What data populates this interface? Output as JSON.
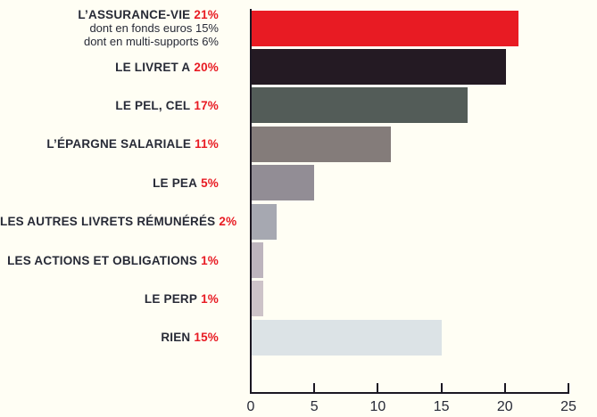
{
  "chart_data": {
    "type": "bar",
    "orientation": "horizontal",
    "title": "",
    "xlabel": "",
    "ylabel": "",
    "xlim": [
      0,
      25
    ],
    "grid": false,
    "legend": false,
    "background_color": "#FFFEF4",
    "axis_color": "#1B1722",
    "label_color": "#272A36",
    "accent_color": "#E81B23",
    "x_ticks": [
      {
        "label": "0",
        "value": 0
      },
      {
        "label": "5",
        "value": 5
      },
      {
        "label": "10",
        "value": 10
      },
      {
        "label": "15",
        "value": 15
      },
      {
        "label": "20",
        "value": 20
      },
      {
        "label": "25",
        "value": 25
      }
    ],
    "bars": [
      {
        "label": "L’ASSURANCE-VIE",
        "value_label": "21%",
        "value": 21,
        "color": "#E81B23",
        "sublabels": [
          "dont en fonds euros 15%",
          "dont en multi-supports 6%"
        ]
      },
      {
        "label": "LE LIVRET A",
        "value_label": "20%",
        "value": 20,
        "color": "#241A23",
        "sublabels": []
      },
      {
        "label": "LE PEL, CEL",
        "value_label": "17%",
        "value": 17,
        "color": "#535C58",
        "sublabels": []
      },
      {
        "label": "L’ÉPARGNE SALARIALE",
        "value_label": "11%",
        "value": 11,
        "color": "#847C7A",
        "sublabels": []
      },
      {
        "label": "LE PEA",
        "value_label": "5%",
        "value": 5,
        "color": "#928D95",
        "sublabels": []
      },
      {
        "label": "LES AUTRES LIVRETS RÉMUNÉRÉS",
        "value_label": "2%",
        "value": 2,
        "color": "#A6A8B1",
        "sublabels": []
      },
      {
        "label": "LES ACTIONS ET OBLIGATIONS",
        "value_label": "1%",
        "value": 1,
        "color": "#BDB4BD",
        "sublabels": []
      },
      {
        "label": "LE PERP",
        "value_label": "1%",
        "value": 1,
        "color": "#CDC3C8",
        "sublabels": []
      },
      {
        "label": "RIEN",
        "value_label": "15%",
        "value": 15,
        "color": "#DCE3E6",
        "sublabels": []
      }
    ]
  }
}
